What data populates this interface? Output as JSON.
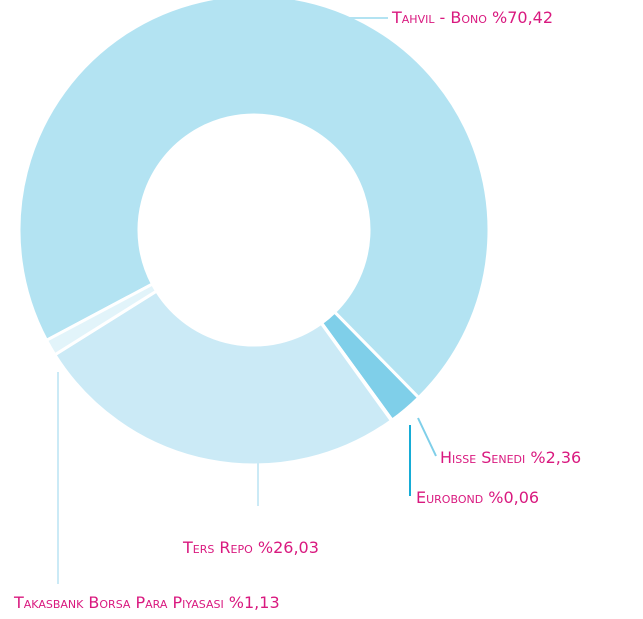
{
  "chart_data": {
    "type": "donut",
    "categories": [
      "Tahvil - Bono",
      "Hisse Senedi",
      "Eurobond",
      "Ters Repo",
      "Takasbank Borsa Para Piyasası"
    ],
    "values": [
      70.42,
      2.36,
      0.06,
      26.03,
      1.13
    ],
    "value_labels": [
      "%70,42",
      "%2,36",
      "%0,06",
      "%26,03",
      "%1,13"
    ],
    "colors": [
      "#b3e3f2",
      "#7fcfe9",
      "#16acd6",
      "#cbeaf6",
      "#e2f4fa"
    ]
  }
}
